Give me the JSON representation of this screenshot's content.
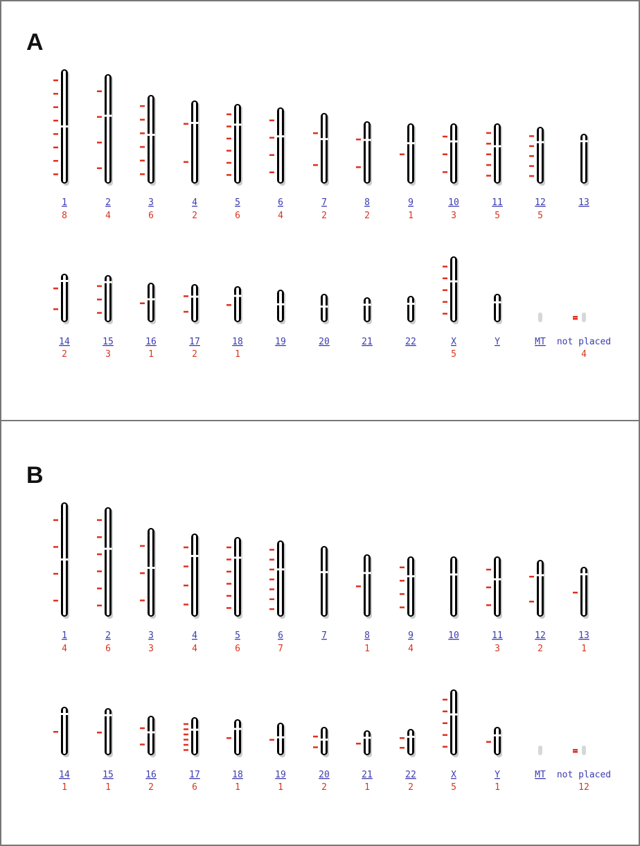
{
  "panels": [
    {
      "label": "A",
      "chromosomes": [
        {
          "name": "1",
          "count": "8"
        },
        {
          "name": "2",
          "count": "4"
        },
        {
          "name": "3",
          "count": "6"
        },
        {
          "name": "4",
          "count": "2"
        },
        {
          "name": "5",
          "count": "6"
        },
        {
          "name": "6",
          "count": "4"
        },
        {
          "name": "7",
          "count": "2"
        },
        {
          "name": "8",
          "count": "2"
        },
        {
          "name": "9",
          "count": "1"
        },
        {
          "name": "10",
          "count": "3"
        },
        {
          "name": "11",
          "count": "5"
        },
        {
          "name": "12",
          "count": "5"
        },
        {
          "name": "13"
        },
        {
          "name": "14",
          "count": "2"
        },
        {
          "name": "15",
          "count": "3"
        },
        {
          "name": "16",
          "count": "1"
        },
        {
          "name": "17",
          "count": "2"
        },
        {
          "name": "18",
          "count": "1"
        },
        {
          "name": "19"
        },
        {
          "name": "20"
        },
        {
          "name": "21"
        },
        {
          "name": "22"
        },
        {
          "name": "X",
          "count": "5"
        },
        {
          "name": "Y"
        },
        {
          "name": "MT"
        },
        {
          "name": "not placed",
          "count": "4"
        }
      ]
    },
    {
      "label": "B",
      "chromosomes": [
        {
          "name": "1",
          "count": "4"
        },
        {
          "name": "2",
          "count": "6"
        },
        {
          "name": "3",
          "count": "3"
        },
        {
          "name": "4",
          "count": "4"
        },
        {
          "name": "5",
          "count": "6"
        },
        {
          "name": "6",
          "count": "7"
        },
        {
          "name": "7"
        },
        {
          "name": "8",
          "count": "1"
        },
        {
          "name": "9",
          "count": "4"
        },
        {
          "name": "10"
        },
        {
          "name": "11",
          "count": "3"
        },
        {
          "name": "12",
          "count": "2"
        },
        {
          "name": "13",
          "count": "1"
        },
        {
          "name": "14",
          "count": "1"
        },
        {
          "name": "15",
          "count": "1"
        },
        {
          "name": "16",
          "count": "2"
        },
        {
          "name": "17",
          "count": "6"
        },
        {
          "name": "18",
          "count": "1"
        },
        {
          "name": "19",
          "count": "1"
        },
        {
          "name": "20",
          "count": "2"
        },
        {
          "name": "21",
          "count": "1"
        },
        {
          "name": "22",
          "count": "2"
        },
        {
          "name": "X",
          "count": "5"
        },
        {
          "name": "Y",
          "count": "1"
        },
        {
          "name": "MT"
        },
        {
          "name": "not placed",
          "count": "12"
        }
      ]
    }
  ]
}
